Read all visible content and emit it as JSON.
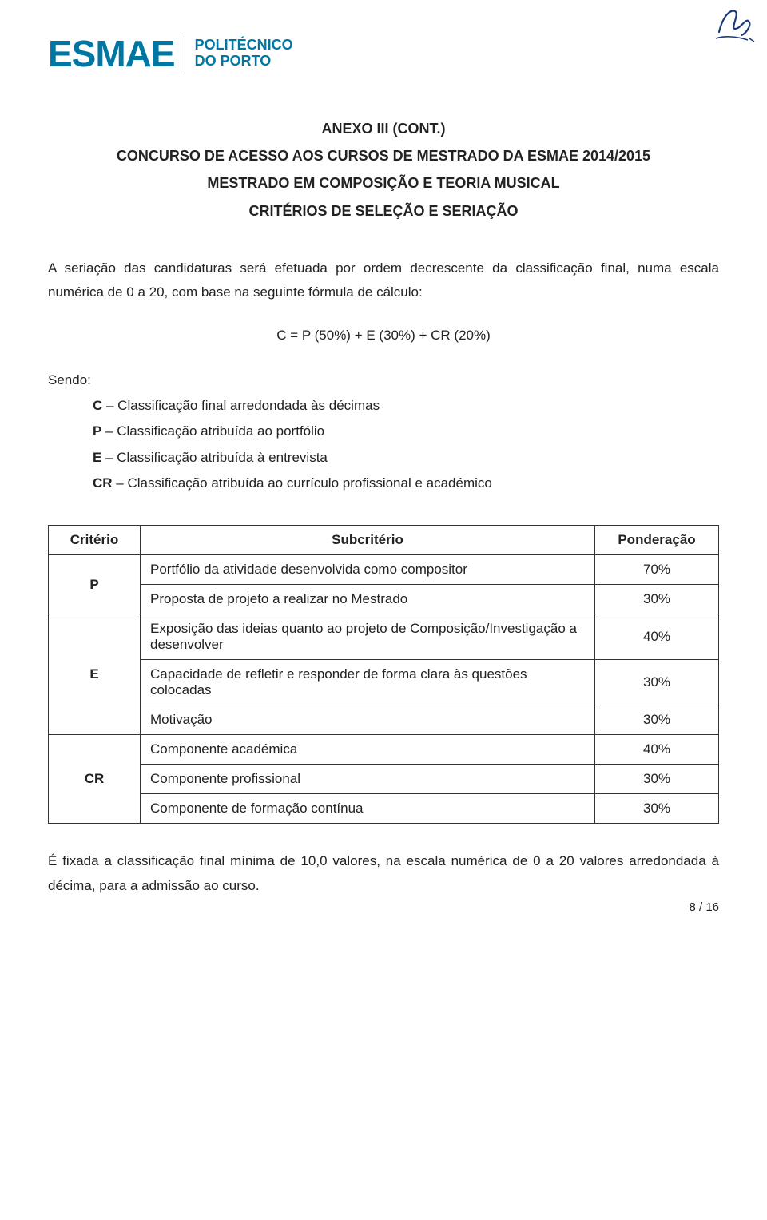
{
  "header": {
    "logo_main": "ESMAE",
    "logo_sub_line1": "POLITÉCNICO",
    "logo_sub_line2": "DO PORTO"
  },
  "titles": {
    "anexo": "ANEXO III (CONT.)",
    "concurso": "CONCURSO DE ACESSO AOS CURSOS DE MESTRADO DA ESMAE 2014/2015",
    "mestrado": "MESTRADO EM COMPOSIÇÃO E TEORIA MUSICAL",
    "criterios": "CRITÉRIOS DE SELEÇÃO E SERIAÇÃO"
  },
  "paragraphs": {
    "intro": "A seriação das candidaturas será efetuada por ordem decrescente da classificação final, numa escala numérica de 0 a 20, com base na seguinte fórmula de cálculo:",
    "formula": "C = P (50%) + E (30%) + CR (20%)",
    "sendo": "Sendo:",
    "final": "É fixada a classificação final mínima de 10,0 valores, na escala numérica de 0 a 20 valores arredondada à décima, para a admissão ao curso."
  },
  "definitions": {
    "c": "C – Classificação final arredondada às décimas",
    "p": "P – Classificação atribuída ao portfólio",
    "e": "E – Classificação atribuída à entrevista",
    "cr": "CR – Classificação atribuída ao currículo profissional e académico"
  },
  "table": {
    "headers": {
      "criterio": "Critério",
      "subcriterio": "Subcritério",
      "ponderacao": "Ponderação"
    },
    "groups": [
      {
        "crit": "P",
        "rows": [
          {
            "sub": "Portfólio da atividade desenvolvida como compositor",
            "pond": "70%"
          },
          {
            "sub": "Proposta de projeto a realizar no Mestrado",
            "pond": "30%"
          }
        ]
      },
      {
        "crit": "E",
        "rows": [
          {
            "sub": "Exposição das ideias quanto ao projeto de Composição/Investigação a desenvolver",
            "pond": "40%"
          },
          {
            "sub": "Capacidade de refletir e responder de forma clara às questões colocadas",
            "pond": "30%"
          },
          {
            "sub": "Motivação",
            "pond": "30%"
          }
        ]
      },
      {
        "crit": "CR",
        "rows": [
          {
            "sub": "Componente académica",
            "pond": "40%"
          },
          {
            "sub": "Componente profissional",
            "pond": "30%"
          },
          {
            "sub": "Componente de formação contínua",
            "pond": "30%"
          }
        ]
      }
    ]
  },
  "page_number": "8 / 16",
  "colors": {
    "brand": "#0077a3",
    "text": "#222222",
    "border": "#333333",
    "background": "#ffffff"
  },
  "typography": {
    "logo_main_size_pt": 46,
    "logo_sub_size_pt": 18,
    "title_size_pt": 18,
    "body_size_pt": 17,
    "pagenum_size_pt": 15
  }
}
